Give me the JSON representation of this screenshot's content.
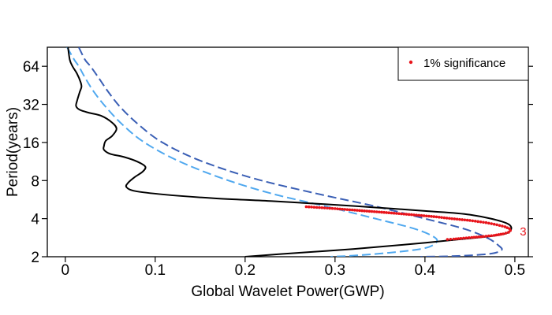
{
  "chart_data": {
    "type": "line",
    "xlabel": "Global Wavelet Power(GWP)",
    "ylabel": "Period(years)",
    "xlim": [
      -0.02,
      0.515
    ],
    "ylim_log2": [
      1,
      6.5
    ],
    "y_scale": "log2",
    "grid": false,
    "legend_position": "top-right",
    "x_ticks": [
      "0",
      "0.1",
      "0.2",
      "0.3",
      "0.4",
      "0.5"
    ],
    "x_tick_values": [
      0,
      0.1,
      0.2,
      0.3,
      0.4,
      0.5
    ],
    "y_ticks": [
      "2",
      "4",
      "8",
      "16",
      "32",
      "64"
    ],
    "y_tick_values": [
      2,
      4,
      8,
      16,
      32,
      64
    ],
    "legend": {
      "label": "1% significance",
      "color": "#e8141b"
    },
    "peak_label": {
      "text": "3",
      "period": 3.2
    },
    "colors": {
      "gwp": "#000000",
      "sig_light": "#4fa8ef",
      "sig_dark": "#3a5fb5",
      "significance": "#e8141b"
    },
    "series": [
      {
        "key": "gwp",
        "style": "solid",
        "points": [
          [
            0.003,
            90.5
          ],
          [
            0.005,
            72
          ],
          [
            0.008,
            64
          ],
          [
            0.013,
            56
          ],
          [
            0.017,
            48
          ],
          [
            0.018,
            44
          ],
          [
            0.016,
            40
          ],
          [
            0.013,
            34
          ],
          [
            0.012,
            31
          ],
          [
            0.016,
            29
          ],
          [
            0.026,
            27.5
          ],
          [
            0.04,
            26
          ],
          [
            0.052,
            23
          ],
          [
            0.057,
            20.5
          ],
          [
            0.052,
            18
          ],
          [
            0.045,
            16.5
          ],
          [
            0.043,
            15
          ],
          [
            0.043,
            14
          ],
          [
            0.05,
            13
          ],
          [
            0.065,
            12.3
          ],
          [
            0.08,
            11.3
          ],
          [
            0.089,
            10.3
          ],
          [
            0.086,
            9.4
          ],
          [
            0.077,
            8.5
          ],
          [
            0.07,
            7.7
          ],
          [
            0.068,
            7.1
          ],
          [
            0.078,
            6.6
          ],
          [
            0.11,
            6.2
          ],
          [
            0.165,
            5.8
          ],
          [
            0.23,
            5.5
          ],
          [
            0.29,
            5.2
          ],
          [
            0.345,
            4.9
          ],
          [
            0.4,
            4.6
          ],
          [
            0.45,
            4.3
          ],
          [
            0.49,
            3.7
          ],
          [
            0.495,
            3.2
          ],
          [
            0.48,
            2.95
          ],
          [
            0.44,
            2.75
          ],
          [
            0.38,
            2.5
          ],
          [
            0.32,
            2.3
          ],
          [
            0.26,
            2.15
          ],
          [
            0.2,
            2.0
          ]
        ]
      },
      {
        "key": "sig_light",
        "style": "dashed",
        "points": [
          [
            0.002,
            90.5
          ],
          [
            0.01,
            72
          ],
          [
            0.015,
            64
          ],
          [
            0.022,
            52
          ],
          [
            0.032,
            40
          ],
          [
            0.046,
            30
          ],
          [
            0.064,
            22
          ],
          [
            0.088,
            16
          ],
          [
            0.125,
            11.5
          ],
          [
            0.175,
            8.3
          ],
          [
            0.23,
            6.3
          ],
          [
            0.29,
            5.0
          ],
          [
            0.345,
            4.0
          ],
          [
            0.39,
            3.3
          ],
          [
            0.412,
            2.8
          ],
          [
            0.41,
            2.5
          ],
          [
            0.395,
            2.3
          ],
          [
            0.36,
            2.15
          ],
          [
            0.32,
            2.04
          ],
          [
            0.295,
            2.0
          ]
        ]
      },
      {
        "key": "sig_dark",
        "style": "dashed",
        "points": [
          [
            0.015,
            90.5
          ],
          [
            0.022,
            72
          ],
          [
            0.028,
            64
          ],
          [
            0.037,
            52
          ],
          [
            0.048,
            40
          ],
          [
            0.062,
            30
          ],
          [
            0.082,
            22
          ],
          [
            0.108,
            16
          ],
          [
            0.15,
            11.5
          ],
          [
            0.21,
            8.3
          ],
          [
            0.28,
            6.3
          ],
          [
            0.345,
            5.0
          ],
          [
            0.4,
            4.0
          ],
          [
            0.445,
            3.3
          ],
          [
            0.47,
            2.8
          ],
          [
            0.482,
            2.45
          ],
          [
            0.485,
            2.25
          ],
          [
            0.47,
            2.1
          ],
          [
            0.43,
            2.02
          ],
          [
            0.395,
            2.0
          ]
        ]
      }
    ],
    "significance_points": [
      [
        0.268,
        4.97
      ],
      [
        0.3,
        4.8
      ],
      [
        0.33,
        4.62
      ],
      [
        0.36,
        4.45
      ],
      [
        0.385,
        4.3
      ],
      [
        0.41,
        4.15
      ],
      [
        0.43,
        4.0
      ],
      [
        0.45,
        3.87
      ],
      [
        0.468,
        3.72
      ],
      [
        0.48,
        3.58
      ],
      [
        0.489,
        3.45
      ],
      [
        0.494,
        3.33
      ],
      [
        0.495,
        3.22
      ],
      [
        0.493,
        3.12
      ],
      [
        0.487,
        3.03
      ],
      [
        0.477,
        2.95
      ],
      [
        0.465,
        2.89
      ],
      [
        0.452,
        2.84
      ],
      [
        0.44,
        2.79
      ],
      [
        0.432,
        2.76
      ],
      [
        0.425,
        2.74
      ]
    ]
  }
}
